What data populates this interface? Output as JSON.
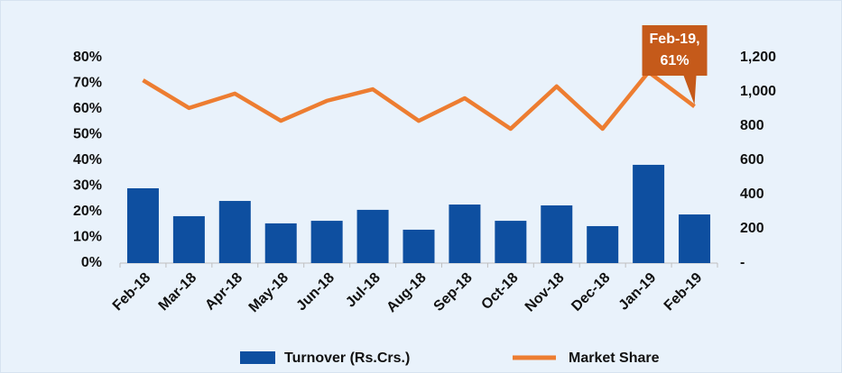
{
  "chart_data": {
    "type": "combo",
    "categories": [
      "Feb-18",
      "Mar-18",
      "Apr-18",
      "May-18",
      "Jun-18",
      "Jul-18",
      "Aug-18",
      "Sep-18",
      "Oct-18",
      "Nov-18",
      "Dec-18",
      "Jan-19",
      "Feb-19"
    ],
    "series": [
      {
        "name": "Turnover (Rs.Crs.)",
        "type": "bar",
        "axis": "y2",
        "color": "#0e4fa0",
        "values": [
          437,
          274,
          363,
          232,
          247,
          311,
          195,
          342,
          247,
          337,
          216,
          574,
          284
        ]
      },
      {
        "name": "Market Share",
        "type": "line",
        "axis": "y",
        "color": "#ed7d31",
        "values": [
          71.2,
          60.4,
          66,
          55.4,
          63.2,
          67.7,
          55.4,
          64.2,
          52.3,
          68.8,
          52.3,
          74.4,
          61
        ]
      }
    ],
    "ylim": [
      0,
      80
    ],
    "yticks": [
      {
        "value": 0,
        "label": "0%"
      },
      {
        "value": 10,
        "label": "10%"
      },
      {
        "value": 20,
        "label": "20%"
      },
      {
        "value": 30,
        "label": "30%"
      },
      {
        "value": 40,
        "label": "40%"
      },
      {
        "value": 50,
        "label": "50%"
      },
      {
        "value": 60,
        "label": "60%"
      },
      {
        "value": 70,
        "label": "70%"
      },
      {
        "value": 80,
        "label": "80%"
      }
    ],
    "y2lim": [
      0,
      1200
    ],
    "y2ticks": [
      {
        "value": 0,
        "label": "-"
      },
      200,
      400,
      600,
      800,
      {
        "value": 1000,
        "label": "1,000"
      },
      {
        "value": 1200,
        "label": "1,200"
      }
    ],
    "annotation": {
      "lines": [
        "Feb-19,",
        "61%"
      ],
      "color": "#c55a1a"
    },
    "legend": "bottom"
  }
}
